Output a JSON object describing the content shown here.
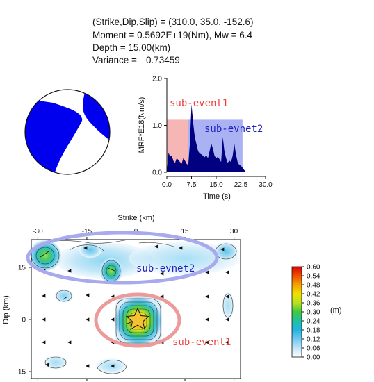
{
  "header": {
    "line1": "(Strike,Dip,Slip) = (310.0, 35.0, -152.6)",
    "line2": "Moment = 0.5692E+19(Nm), Mw = 6.4",
    "line3": "Depth =  15.00(km)",
    "line4_label": "Variance =",
    "line4_value": "0.73459"
  },
  "colors": {
    "mechanism": "#0000ee",
    "mrf_fill": "#000080",
    "sub_event1": "#f04040",
    "sub_event2": "#2020c0",
    "sub_event1_box": "#f6b6b6",
    "sub_event2_box": "#aab2f4",
    "sub_event1_ellipse": "#ec9a9a",
    "sub_event2_ellipse": "#a9a9ee",
    "star": "#f2c230"
  },
  "chart_data": [
    {
      "type": "area",
      "name": "moment-rate-function",
      "xlabel": "Time (s)",
      "ylabel": "MRF*E18(Nm/s)",
      "xlim": [
        0,
        30
      ],
      "ylim": [
        0,
        2
      ],
      "xticks": [
        "0.0",
        "7.5",
        "15.0",
        "22.5",
        "30.0"
      ],
      "yticks": [
        "0.0",
        "1.0",
        "2.0"
      ],
      "annotations": {
        "sub_event1": "sub-event1",
        "sub_event2": "sub-evnet2"
      },
      "windows": [
        {
          "label": "sub-event1",
          "t0": 0,
          "t1": 6.5,
          "top": 1.12
        },
        {
          "label": "sub-evnet2",
          "t0": 6.5,
          "t1": 23.0,
          "top": 1.12
        }
      ],
      "x": [
        0,
        0.5,
        1.0,
        1.5,
        2.0,
        2.5,
        3.0,
        3.5,
        4.0,
        4.5,
        5.0,
        5.5,
        6.0,
        6.5,
        7.0,
        7.5,
        8.0,
        8.5,
        9.0,
        9.5,
        10.0,
        10.5,
        11.0,
        11.5,
        12.0,
        12.5,
        13.0,
        13.5,
        14.0,
        14.5,
        15.0,
        15.5,
        16.0,
        16.5,
        17.0,
        17.5,
        18.0,
        18.5,
        19.0,
        19.5,
        20.0,
        20.5,
        21.0,
        21.5,
        22.0,
        22.5,
        23.0,
        23.5,
        24.0
      ],
      "y": [
        0.02,
        0.42,
        0.33,
        0.36,
        0.24,
        0.2,
        0.3,
        0.26,
        0.22,
        0.18,
        0.3,
        0.25,
        0.18,
        0.15,
        0.6,
        1.45,
        1.05,
        0.75,
        0.6,
        0.45,
        0.4,
        0.38,
        0.35,
        0.32,
        0.36,
        0.3,
        0.45,
        0.62,
        0.5,
        0.35,
        0.3,
        0.33,
        0.28,
        0.22,
        0.75,
        0.45,
        0.3,
        0.2,
        0.25,
        0.22,
        0.35,
        0.62,
        0.38,
        0.22,
        0.16,
        0.14,
        0.1,
        0.05,
        0.01
      ]
    },
    {
      "type": "heatmap",
      "name": "slip-distribution",
      "xlabel": "Strike (km)",
      "ylabel": "Dip (km)",
      "xlim": [
        -32,
        32
      ],
      "ylim": [
        -17,
        23
      ],
      "xticks": [
        "-30",
        "-15",
        "0",
        "15",
        "30"
      ],
      "yticks": [
        "15",
        "0",
        "-15"
      ],
      "colorbar": {
        "unit": "(m)",
        "ticks": [
          "0.60",
          "0.54",
          "0.48",
          "0.42",
          "0.36",
          "0.30",
          "0.24",
          "0.18",
          "0.12",
          "0.06",
          "0.00"
        ]
      },
      "annotations": {
        "sub_event1": "sub-event1",
        "sub_event2": "sub-evnet2"
      },
      "patches": [
        {
          "strike": -28,
          "dip": 20,
          "slip": 0.3
        },
        {
          "strike": -15,
          "dip": 20,
          "slip": 0.14
        },
        {
          "strike": -7,
          "dip": 15,
          "slip": 0.22
        },
        {
          "strike": -5,
          "dip": 20,
          "slip": 0.12
        },
        {
          "strike": 5,
          "dip": 20,
          "slip": 0.1
        },
        {
          "strike": 15,
          "dip": 20,
          "slip": 0.1
        },
        {
          "strike": 27,
          "dip": 20,
          "slip": 0.15
        },
        {
          "strike": -22,
          "dip": 7,
          "slip": 0.1
        },
        {
          "strike": 27,
          "dip": 5,
          "slip": 0.06
        },
        {
          "strike": 0,
          "dip": 0,
          "slip": 0.6
        },
        {
          "strike": -25,
          "dip": -13,
          "slip": 0.06
        },
        {
          "strike": -8,
          "dip": -14,
          "slip": 0.08
        }
      ]
    }
  ]
}
